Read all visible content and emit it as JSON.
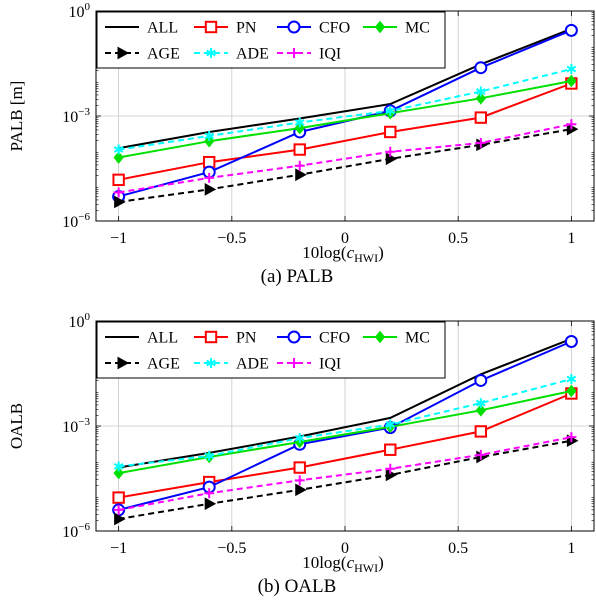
{
  "chart_data": [
    {
      "type": "line",
      "caption": "(a) PALB",
      "ylabel": "PALB [m]",
      "xlabel": "10log(c_HWI)",
      "xlabel_main": "10log(",
      "xlabel_var": "c",
      "xlabel_sub": "HWI",
      "xlabel_close": ")",
      "y_scale": "log",
      "xlim": [
        -1.1,
        1.1
      ],
      "ylim": [
        1e-06,
        1
      ],
      "x_ticks": [
        -1,
        -0.5,
        0,
        0.5,
        1
      ],
      "x_tick_labels": [
        "−1",
        "−0.5",
        "0",
        "0.5",
        "1"
      ],
      "y_ticks": [
        1e-06,
        0.001,
        1
      ],
      "y_tick_labels": [
        [
          "10",
          "−6"
        ],
        [
          "10",
          "−3"
        ],
        [
          "10",
          "0"
        ]
      ],
      "grid": true,
      "legend_position": "top-left",
      "x": [
        -1,
        -0.6,
        -0.2,
        0.2,
        0.6,
        1
      ],
      "series": [
        {
          "name": "ALL",
          "values": [
            0.00012,
            0.00035,
            0.00085,
            0.0022,
            0.03,
            0.31
          ]
        },
        {
          "name": "PN",
          "values": [
            1.5e-05,
            4.8e-05,
            0.00011,
            0.00035,
            0.0009,
            0.0085
          ]
        },
        {
          "name": "CFO",
          "values": [
            5e-06,
            2.5e-05,
            0.00035,
            0.0014,
            0.024,
            0.28
          ]
        },
        {
          "name": "MC",
          "values": [
            6.5e-05,
            0.00019,
            0.00045,
            0.0012,
            0.0032,
            0.01
          ]
        },
        {
          "name": "AGE",
          "values": [
            3.5e-06,
            8e-06,
            2.1e-05,
            6e-05,
            0.00015,
            0.00042
          ]
        },
        {
          "name": "ADE",
          "values": [
            0.00011,
            0.00027,
            0.00065,
            0.0014,
            0.005,
            0.022
          ]
        },
        {
          "name": "IQI",
          "values": [
            6.5e-06,
            1.7e-05,
            3.8e-05,
            9.5e-05,
            0.00017,
            0.00058
          ]
        }
      ]
    },
    {
      "type": "line",
      "caption": "(b) OALB",
      "ylabel": "OALB",
      "xlabel": "10log(c_HWI)",
      "xlabel_main": "10log(",
      "xlabel_var": "c",
      "xlabel_sub": "HWI",
      "xlabel_close": ")",
      "y_scale": "log",
      "xlim": [
        -1.1,
        1.1
      ],
      "ylim": [
        1e-06,
        1
      ],
      "x_ticks": [
        -1,
        -0.5,
        0,
        0.5,
        1
      ],
      "x_tick_labels": [
        "−1",
        "−0.5",
        "0",
        "0.5",
        "1"
      ],
      "y_ticks": [
        1e-06,
        0.001,
        1
      ],
      "y_tick_labels": [
        [
          "10",
          "−6"
        ],
        [
          "10",
          "−3"
        ],
        [
          "10",
          "0"
        ]
      ],
      "grid": true,
      "legend_position": "top-left",
      "x": [
        -1,
        -0.6,
        -0.2,
        0.2,
        0.6,
        1
      ],
      "series": [
        {
          "name": "ALL",
          "values": [
            6.5e-05,
            0.00017,
            0.0005,
            0.0017,
            0.03,
            0.31
          ]
        },
        {
          "name": "PN",
          "values": [
            9e-06,
            2.5e-05,
            6.5e-05,
            0.00021,
            0.0007,
            0.0085
          ]
        },
        {
          "name": "CFO",
          "values": [
            4e-06,
            1.8e-05,
            0.0003,
            0.0009,
            0.02,
            0.26
          ]
        },
        {
          "name": "MC",
          "values": [
            4.5e-05,
            0.00013,
            0.00035,
            0.00095,
            0.0028,
            0.01
          ]
        },
        {
          "name": "AGE",
          "values": [
            2.2e-06,
            6e-06,
            1.5e-05,
            4e-05,
            0.00013,
            0.00038
          ]
        },
        {
          "name": "ADE",
          "values": [
            7e-05,
            0.00014,
            0.00045,
            0.0011,
            0.0045,
            0.022
          ]
        },
        {
          "name": "IQI",
          "values": [
            4e-06,
            1.2e-05,
            2.8e-05,
            6e-05,
            0.00015,
            0.00048
          ]
        }
      ]
    }
  ],
  "styles": {
    "ALL": {
      "color": "#000000",
      "dash": "",
      "marker": "none"
    },
    "PN": {
      "color": "#ff0000",
      "dash": "",
      "marker": "square"
    },
    "CFO": {
      "color": "#0000ff",
      "dash": "",
      "marker": "circle"
    },
    "MC": {
      "color": "#00e000",
      "dash": "",
      "marker": "diamond"
    },
    "AGE": {
      "color": "#000000",
      "dash": "6,4",
      "marker": "triangle-right"
    },
    "ADE": {
      "color": "#00ffff",
      "dash": "6,4",
      "marker": "asterisk"
    },
    "IQI": {
      "color": "#ff00ff",
      "dash": "6,4",
      "marker": "plus"
    }
  },
  "legend_rows": [
    [
      "ALL",
      "PN",
      "CFO",
      "MC"
    ],
    [
      "AGE",
      "ADE",
      "IQI"
    ]
  ]
}
